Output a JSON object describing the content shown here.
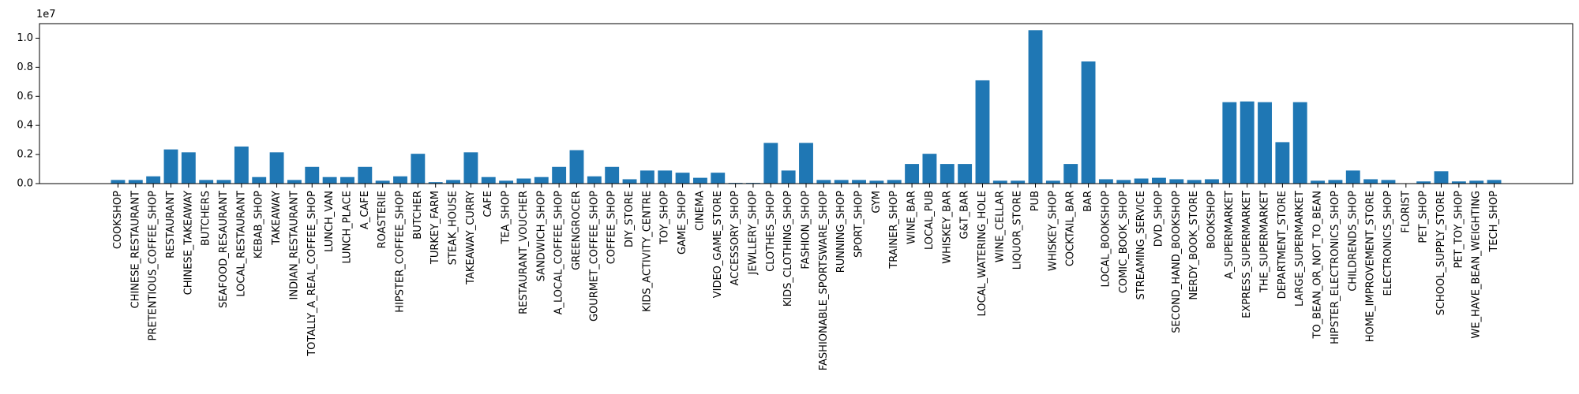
{
  "chart_data": {
    "type": "bar",
    "title": "",
    "xlabel": "",
    "ylabel": "",
    "y_offset_label": "1e7",
    "ylim": [
      0,
      1.1
    ],
    "y_ticks": [
      0.0,
      0.2,
      0.4,
      0.6,
      0.8,
      1.0
    ],
    "y_tick_labels": [
      "0.0",
      "0.2",
      "0.4",
      "0.6",
      "0.8",
      "1.0"
    ],
    "grid": false,
    "bar_color": "#1f77b4",
    "categories": [
      "COOKSHOP",
      "CHINESE_RESTAURANT",
      "PRETENTIOUS_COFFEE_SHOP",
      "RESTAURANT",
      "CHINESE_TAKEAWAY",
      "BUTCHERS",
      "SEAFOOD_RESAURANT",
      "LOCAL_RESTAURANT",
      "KEBAB_SHOP",
      "TAKEAWAY",
      "INDIAN_RESTAURANT",
      "TOTALLY_A_REAL_COFFEE_SHOP",
      "LUNCH_VAN",
      "LUNCH_PLACE",
      "A_CAFE",
      "ROASTERIE",
      "HIPSTER_COFFEE_SHOP",
      "BUTCHER",
      "TURKEY_FARM",
      "STEAK_HOUSE",
      "TAKEAWAY_CURRY",
      "CAFE",
      "TEA_SHOP",
      "RESTAURANT_VOUCHER",
      "SANDWICH_SHOP",
      "A_LOCAL_COFFEE_SHOP",
      "GREENGROCER",
      "GOURMET_COFFEE_SHOP",
      "COFFEE_SHOP",
      "DIY_STORE",
      "KIDS_ACTIVITY_CENTRE",
      "TOY_SHOP",
      "GAME_SHOP",
      "CINEMA",
      "VIDEO_GAME_STORE",
      "ACCESSORY_SHOP",
      "JEWLLERY_SHOP",
      "CLOTHES_SHOP",
      "KIDS_CLOTHING_SHOP",
      "FASHION_SHOP",
      "FASHIONABLE_SPORTSWARE_SHOP",
      "RUNNING_SHOP",
      "SPORT_SHOP",
      "GYM",
      "TRAINER_SHOP",
      "WINE_BAR",
      "LOCAL_PUB",
      "WHISKEY_BAR",
      "G&T_BAR",
      "LOCAL_WATERING_HOLE",
      "WINE_CELLAR",
      "LIQUOR_STORE",
      "PUB",
      "WHISKEY_SHOP",
      "COCKTAIL_BAR",
      "BAR",
      "LOCAL_BOOKSHOP",
      "COMIC_BOOK_SHOP",
      "STREAMING_SERVICE",
      "DVD_SHOP",
      "SECOND_HAND_BOOKSHOP",
      "NERDY_BOOK_STORE",
      "BOOKSHOP",
      "A_SUPERMARKET",
      "EXPRESS_SUPERMARKET",
      "THE_SUPERMARKET",
      "DEPARTMENT_STORE",
      "LARGE_SUPERMARKET",
      "TO_BEAN_OR_NOT_TO_BEAN",
      "HIPSTER_ELECTRONICS_SHOP",
      "CHILDRENDS_SHOP",
      "HOME_IMPROVEMENT_STORE",
      "ELECTRONICS_SHOP",
      "FLORIST",
      "PET_SHOP",
      "SCHOOL_SUPPLY_STORE",
      "PET_TOY_SHOP",
      "WE_HAVE_BEAN_WEIGHTING",
      "TECH_SHOP"
    ],
    "values": [
      0.025,
      0.025,
      0.05,
      0.235,
      0.215,
      0.025,
      0.025,
      0.255,
      0.045,
      0.215,
      0.025,
      0.115,
      0.045,
      0.045,
      0.115,
      0.02,
      0.05,
      0.205,
      0.01,
      0.025,
      0.215,
      0.045,
      0.02,
      0.035,
      0.045,
      0.115,
      0.23,
      0.05,
      0.115,
      0.03,
      0.09,
      0.09,
      0.075,
      0.04,
      0.075,
      0.005,
      0.005,
      0.28,
      0.09,
      0.28,
      0.025,
      0.025,
      0.025,
      0.02,
      0.025,
      0.135,
      0.205,
      0.135,
      0.135,
      0.71,
      0.02,
      0.02,
      1.055,
      0.02,
      0.135,
      0.84,
      0.03,
      0.025,
      0.035,
      0.04,
      0.03,
      0.025,
      0.03,
      0.56,
      0.565,
      0.56,
      0.285,
      0.56,
      0.02,
      0.025,
      0.09,
      0.03,
      0.025,
      0.0,
      0.015,
      0.085,
      0.015,
      0.02,
      0.025
    ]
  }
}
